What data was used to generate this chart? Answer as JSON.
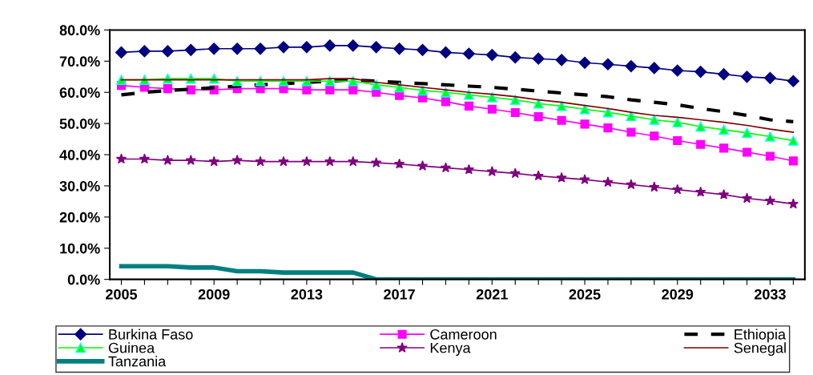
{
  "chart_data": {
    "type": "line",
    "x": [
      2005,
      2006,
      2007,
      2008,
      2009,
      2010,
      2011,
      2012,
      2013,
      2014,
      2015,
      2016,
      2017,
      2018,
      2019,
      2020,
      2021,
      2022,
      2023,
      2024,
      2025,
      2026,
      2027,
      2028,
      2029,
      2030,
      2031,
      2032,
      2033,
      2034
    ],
    "xlim": [
      2004.5,
      2034.5
    ],
    "xticks": [
      2005,
      {
        "value": 2006,
        "label": null
      },
      {
        "value": 2007,
        "label": null
      },
      {
        "value": 2008,
        "label": null
      },
      2009,
      {
        "value": 2010,
        "label": null
      },
      {
        "value": 2011,
        "label": null
      },
      {
        "value": 2012,
        "label": null
      },
      2013,
      {
        "value": 2014,
        "label": null
      },
      {
        "value": 2015,
        "label": null
      },
      {
        "value": 2016,
        "label": null
      },
      2017,
      {
        "value": 2018,
        "label": null
      },
      {
        "value": 2019,
        "label": null
      },
      {
        "value": 2020,
        "label": null
      },
      2021,
      {
        "value": 2022,
        "label": null
      },
      {
        "value": 2023,
        "label": null
      },
      {
        "value": 2024,
        "label": null
      },
      2025,
      {
        "value": 2026,
        "label": null
      },
      {
        "value": 2027,
        "label": null
      },
      {
        "value": 2028,
        "label": null
      },
      2029,
      {
        "value": 2030,
        "label": null
      },
      {
        "value": 2031,
        "label": null
      },
      {
        "value": 2032,
        "label": null
      },
      2033,
      {
        "value": 2034,
        "label": null
      }
    ],
    "ylim": [
      0,
      80
    ],
    "yticks": [
      {
        "value": 0,
        "label": "0.0%"
      },
      {
        "value": 10,
        "label": "10.0%"
      },
      {
        "value": 20,
        "label": "20.0%"
      },
      {
        "value": 30,
        "label": "30.0%"
      },
      {
        "value": 40,
        "label": "40.0%"
      },
      {
        "value": 50,
        "label": "50.0%"
      },
      {
        "value": 60,
        "label": "60.0%"
      },
      {
        "value": 70,
        "label": "70.0%"
      },
      {
        "value": 80,
        "label": "80.0%"
      }
    ],
    "grid": false,
    "legend": "bottom",
    "series": [
      {
        "name": "Burkina Faso",
        "color": "#000080",
        "marker": "diamond",
        "values": [
          72.8,
          73.2,
          73.2,
          73.6,
          74,
          74,
          74,
          74.5,
          74.5,
          75,
          75,
          74.5,
          74,
          73.6,
          72.8,
          72.4,
          72,
          71.2,
          70.8,
          70.4,
          69.5,
          69,
          68.4,
          67.8,
          67,
          66.6,
          65.8,
          65,
          64.6,
          63.6
        ]
      },
      {
        "name": "Cameroon",
        "color": "#ff00ff",
        "marker": "square",
        "values": [
          62.2,
          61.6,
          61.2,
          60.8,
          60.8,
          61.2,
          61.2,
          61.2,
          60.8,
          60.8,
          60.8,
          60,
          59,
          58.2,
          57,
          55.6,
          54.6,
          53.5,
          52.2,
          51,
          49.8,
          48.6,
          47.2,
          46,
          44.5,
          43.3,
          42.1,
          40.8,
          39.5,
          38
        ]
      },
      {
        "name": "Ethiopia",
        "color": "#000000",
        "marker": "none",
        "line_style": "dashed",
        "values": [
          59.2,
          60,
          60.6,
          61,
          61.5,
          62,
          62.4,
          62.8,
          63.2,
          63.6,
          64,
          63.6,
          63.2,
          62.8,
          62.4,
          62,
          61.6,
          61,
          60.4,
          59.8,
          59.2,
          58.6,
          57.6,
          56.8,
          56,
          54.8,
          53.8,
          52.6,
          51.2,
          50.6
        ]
      },
      {
        "name": "Guinea",
        "color": "#00ff00",
        "marker": "triangle",
        "values": [
          64,
          64,
          64.4,
          64.4,
          64.4,
          63.6,
          63.6,
          63.6,
          63.6,
          63.6,
          63.6,
          62.4,
          61.6,
          60.6,
          60,
          59.2,
          58.4,
          57.6,
          56.4,
          55.6,
          54.6,
          53.6,
          52.4,
          51.2,
          50.4,
          49,
          48,
          47,
          45.8,
          44.5
        ]
      },
      {
        "name": "Kenya",
        "color": "#800080",
        "marker": "star",
        "values": [
          38.6,
          38.6,
          38.2,
          38.2,
          37.8,
          38.2,
          37.8,
          37.8,
          37.8,
          37.8,
          37.8,
          37.4,
          37,
          36.4,
          35.8,
          35.2,
          34.6,
          34,
          33.2,
          32.6,
          32,
          31.2,
          30.4,
          29.6,
          28.8,
          28,
          27.2,
          26,
          25.2,
          24.2
        ]
      },
      {
        "name": "Senegal",
        "color": "#800000",
        "marker": "none",
        "values": [
          64,
          64,
          64,
          64,
          64,
          64,
          64,
          64,
          64,
          64.4,
          64.4,
          63.2,
          62.4,
          61.6,
          60.8,
          60,
          59.4,
          58.6,
          57.6,
          56.8,
          55.8,
          54.8,
          53.6,
          52.6,
          52,
          51.2,
          50.4,
          49.4,
          48.2,
          47.2
        ]
      },
      {
        "name": "Tanzania",
        "color": "#008080",
        "marker": "none",
        "values": [
          4.2,
          4.2,
          4.2,
          3.8,
          3.8,
          2.6,
          2.6,
          2.2,
          2.2,
          2.2,
          2.2,
          0,
          0,
          0,
          0,
          0,
          0,
          0,
          0,
          0,
          0,
          0,
          0,
          0,
          0,
          0,
          0,
          0,
          0,
          0
        ]
      }
    ]
  }
}
